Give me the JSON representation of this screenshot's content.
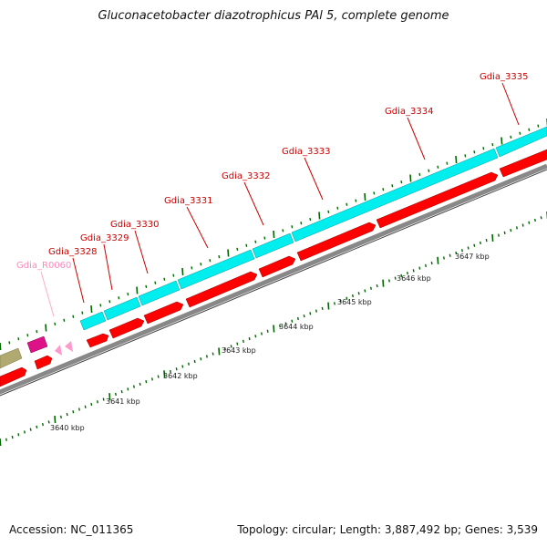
{
  "title": "Gluconacetobacter diazotrophicus PAl 5, complete genome",
  "accession": "Accession: NC_011365",
  "summary": "Topology: circular; Length: 3,887,492 bp; Genes: 3,539",
  "colors": {
    "cds_forward": "#00eeee",
    "cds_reverse": "#ff0000",
    "gene_label": "#cc0000",
    "rna_label": "#ff88bb",
    "rna_feature": "#ff99cc",
    "pseudo_feature": "#dd1188",
    "other_feature": "#b0aa70",
    "backbone": "#888888",
    "ticks": "#006600"
  },
  "gene_labels": [
    {
      "text": "Gdia_R0060",
      "kind": "rna"
    },
    {
      "text": "Gdia_3328",
      "kind": "cds"
    },
    {
      "text": "Gdia_3329",
      "kind": "cds"
    },
    {
      "text": "Gdia_3330",
      "kind": "cds"
    },
    {
      "text": "Gdia_3331",
      "kind": "cds"
    },
    {
      "text": "Gdia_3332",
      "kind": "cds"
    },
    {
      "text": "Gdia_3333",
      "kind": "cds"
    },
    {
      "text": "Gdia_3334",
      "kind": "cds"
    },
    {
      "text": "Gdia_3335",
      "kind": "cds"
    }
  ],
  "kbp_labels": [
    "3640 kbp",
    "3641 kbp",
    "3642 kbp",
    "3643 kbp",
    "3644 kbp",
    "3645 kbp",
    "3646 kbp",
    "3647 kbp"
  ]
}
